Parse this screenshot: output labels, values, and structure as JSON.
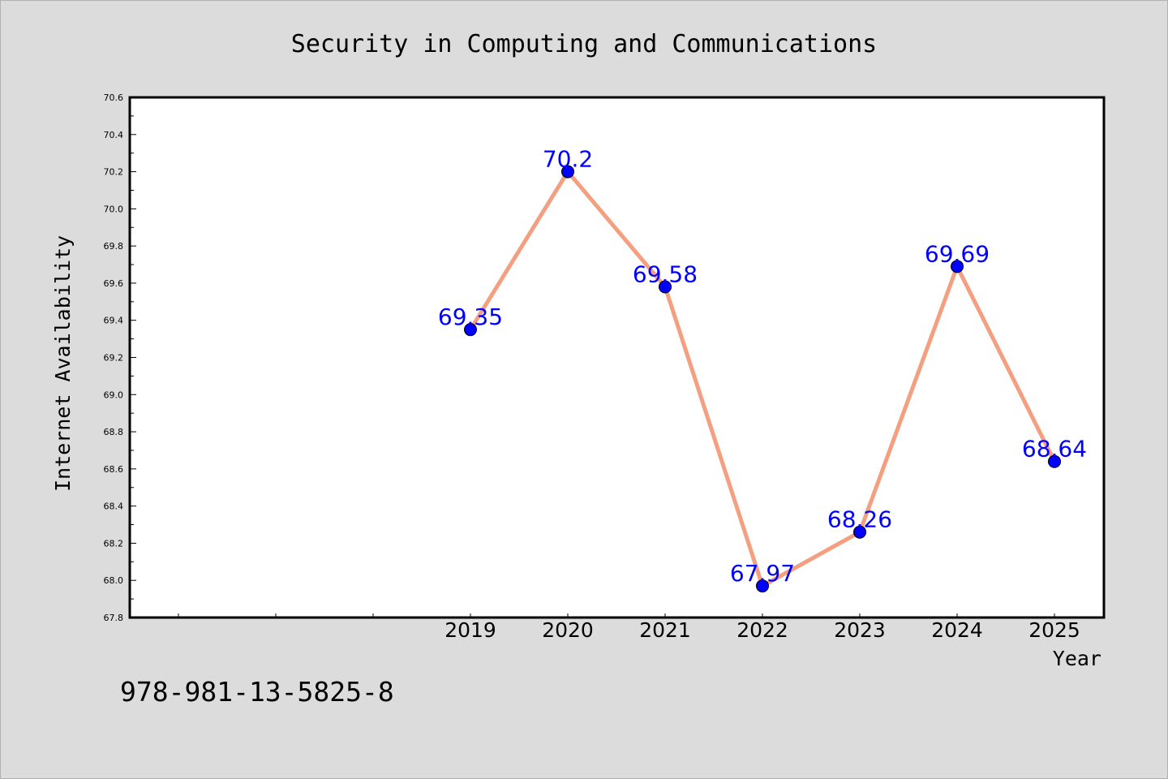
{
  "chart_data": {
    "type": "line",
    "title": "Security in Computing and Communications",
    "xlabel": "Year",
    "ylabel": "Internet Availability",
    "categories": [
      "2019",
      "2020",
      "2021",
      "2022",
      "2023",
      "2024",
      "2025"
    ],
    "series": [
      {
        "values": [
          69.35,
          70.2,
          69.58,
          67.97,
          68.26,
          69.69,
          68.64
        ]
      }
    ],
    "data_labels": [
      "69.35",
      "70.2",
      "69.58",
      "67.97",
      "68.26",
      "69.69",
      "68.64"
    ],
    "x_extra_ticks_left": 3,
    "ylim": [
      67.8,
      70.6
    ],
    "yticks": [
      "67.8",
      "68.0",
      "68.2",
      "68.4",
      "68.6",
      "68.8",
      "69.0",
      "69.2",
      "69.4",
      "69.6",
      "69.8",
      "70.0",
      "70.2",
      "70.4",
      "70.6"
    ],
    "ytick_values": [
      67.8,
      68.0,
      68.2,
      68.4,
      68.6,
      68.8,
      69.0,
      69.2,
      69.4,
      69.6,
      69.8,
      70.0,
      70.2,
      70.4,
      70.6
    ],
    "grid": false,
    "legend": "none",
    "colors": {
      "line": "#f4a080",
      "marker": "#0000ff",
      "label": "#0000ff"
    }
  },
  "footer_text": "978-981-13-5825-8"
}
